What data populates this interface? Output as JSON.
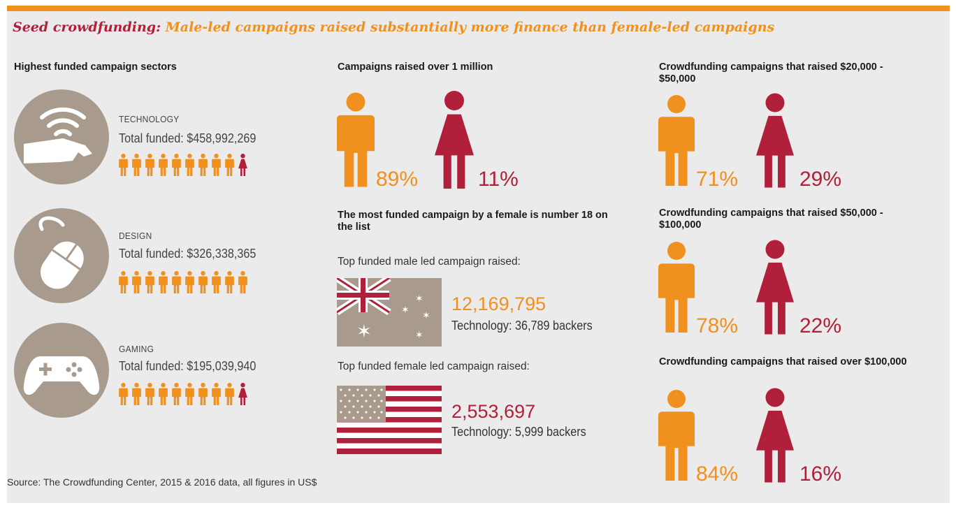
{
  "title": {
    "part1": "Seed crowdfunding:",
    "part2": " Male-led campaigns raised substantially more finance than female-led campaigns"
  },
  "colors": {
    "accent": "#f0901e",
    "female": "#b0203a",
    "icon_bg": "#a89b8e"
  },
  "sectors": {
    "heading": "Highest funded campaign sectors",
    "items": [
      {
        "name": "TECHNOLOGY",
        "total": "Total funded: $458,992,269",
        "icon": "wifi-hand-icon",
        "male_icons": 9,
        "female_icons": 1
      },
      {
        "name": "DESIGN",
        "total": "Total funded: $326,338,365",
        "icon": "mouse-icon",
        "male_icons": 10,
        "female_icons": 0
      },
      {
        "name": "GAMING",
        "total": "Total funded: $195,039,940",
        "icon": "gamepad-icon",
        "male_icons": 9,
        "female_icons": 1
      }
    ]
  },
  "million": {
    "heading": "Campaigns raised over 1 million",
    "male_pct": "89%",
    "female_pct": "11%"
  },
  "most_funded": {
    "heading": "The most funded campaign by a female is number 18 on the list",
    "male_label": "Top funded male led campaign raised:",
    "male_amount": "12,169,795",
    "male_detail": "Technology: 36,789 backers",
    "male_flag": "australia-flag-icon",
    "female_label": "Top funded female led campaign raised:",
    "female_amount": "2,553,697",
    "female_detail": "Technology: 5,999 backers",
    "female_flag": "usa-flag-icon"
  },
  "ranges": [
    {
      "heading": "Crowdfunding campaigns that raised $20,000 - $50,000",
      "male_pct": "71%",
      "female_pct": "29%"
    },
    {
      "heading": "Crowdfunding campaigns that raised $50,000 - $100,000",
      "male_pct": "78%",
      "female_pct": "22%"
    },
    {
      "heading": "Crowdfunding campaigns that raised over $100,000",
      "male_pct": "84%",
      "female_pct": "16%"
    }
  ],
  "source": "Source: The Crowdfunding Center, 2015 & 2016 data, all figures in US$"
}
